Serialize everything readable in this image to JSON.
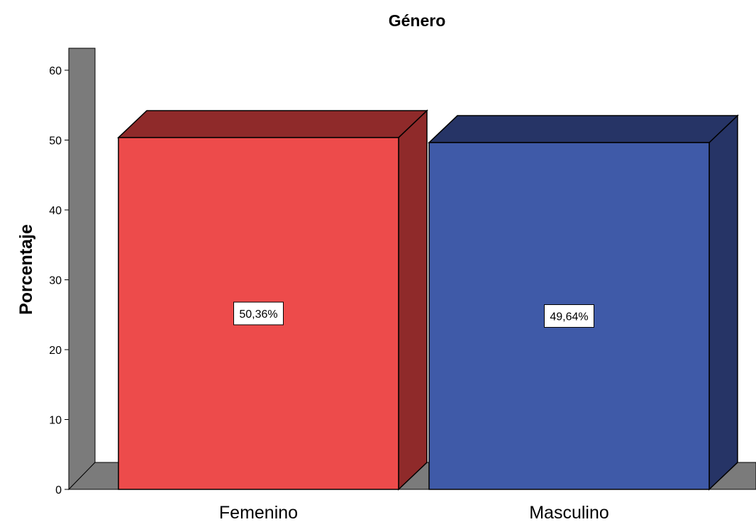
{
  "chart_data": {
    "type": "bar",
    "title": "Género",
    "xlabel": "",
    "ylabel": "Porcentaje",
    "categories": [
      "Femenino",
      "Masculino"
    ],
    "values": [
      50.36,
      49.64
    ],
    "data_labels": [
      "50,36%",
      "49,64%"
    ],
    "yticks": [
      0,
      10,
      20,
      30,
      40,
      50,
      60
    ],
    "ylim": [
      0,
      63
    ],
    "grid": false,
    "legend": "none",
    "three_d": true,
    "colors": {
      "bars": [
        "#ed4b4b",
        "#3f5aa8"
      ],
      "bar_tops": [
        "#8f2a2a",
        "#263466"
      ],
      "bar_sides": [
        "#8f2a2a",
        "#263466"
      ],
      "walls": "#7b7b7b"
    }
  }
}
